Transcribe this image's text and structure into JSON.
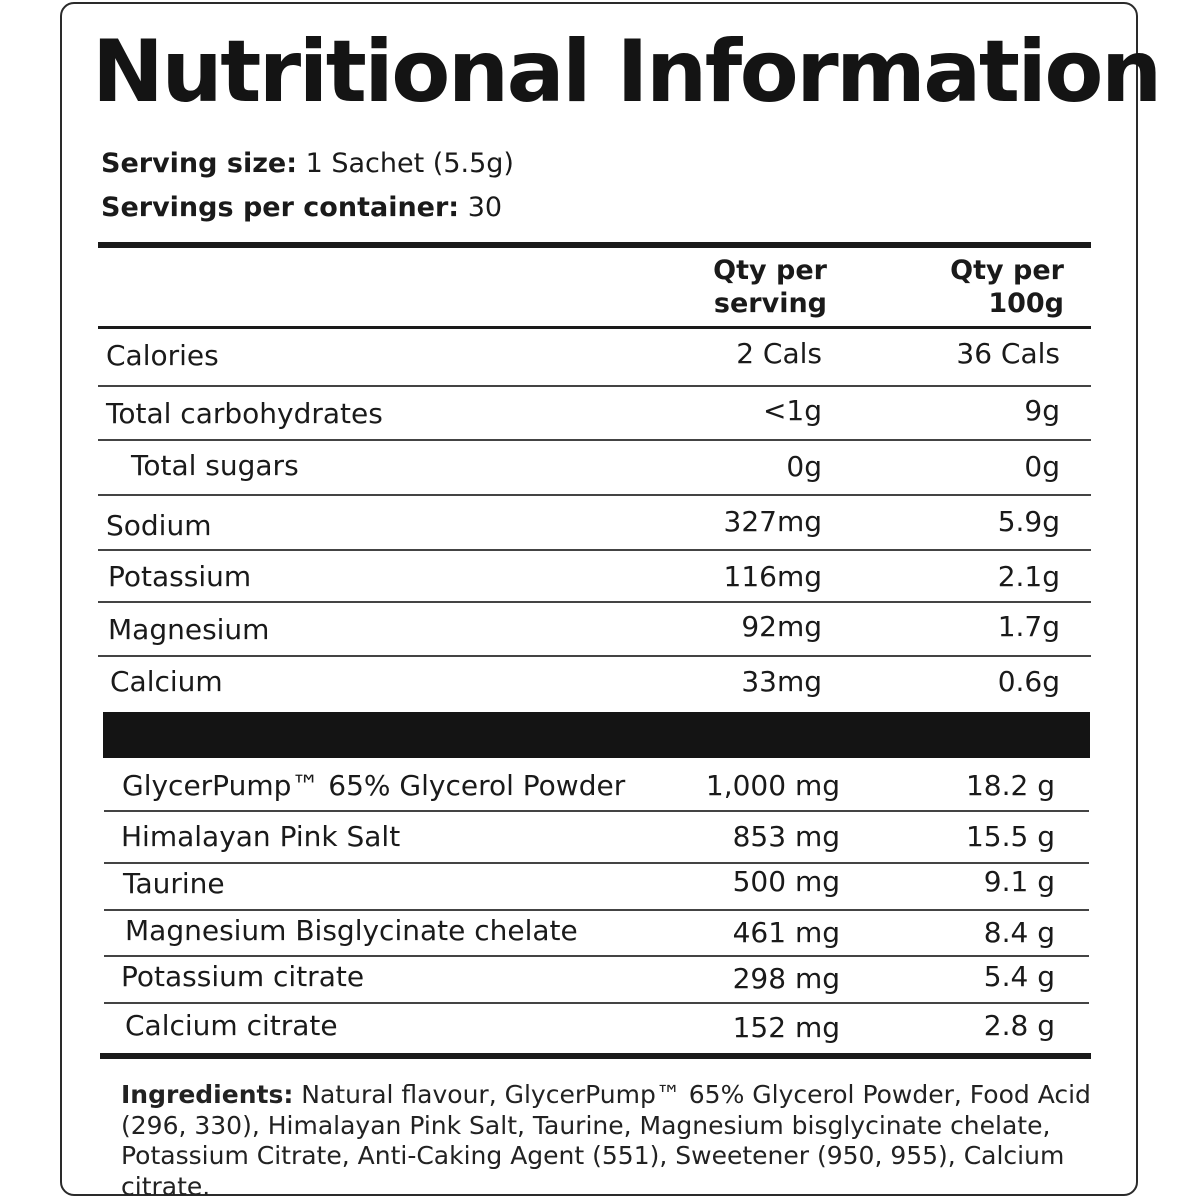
{
  "title": "Nutritional Information",
  "serving": {
    "size_label": "Serving size:",
    "size_value": " 1 Sachet (5.5g)",
    "per_container_label": "Servings per container:",
    "per_container_value": " 30"
  },
  "columns": {
    "per_serving_line1": "Qty per",
    "per_serving_line2": "serving",
    "per_100g_line1": "Qty per",
    "per_100g_line2": "100g"
  },
  "nutrients": [
    {
      "name": "Calories",
      "serving": "2 Cals",
      "per100": "36 Cals"
    },
    {
      "name": "Total carbohydrates",
      "serving": "<1g",
      "per100": "9g"
    },
    {
      "name": "Total sugars",
      "serving": "0g",
      "per100": "0g"
    },
    {
      "name": "Sodium",
      "serving": "327mg",
      "per100": "5.9g"
    },
    {
      "name": "Potassium",
      "serving": "116mg",
      "per100": "2.1g"
    },
    {
      "name": "Magnesium",
      "serving": "92mg",
      "per100": "1.7g"
    },
    {
      "name": "Calcium",
      "serving": "33mg",
      "per100": "0.6g"
    }
  ],
  "actives": [
    {
      "name": "GlycerPump™ 65% Glycerol Powder",
      "serving": "1,000 mg",
      "per100": "18.2 g"
    },
    {
      "name": "Himalayan Pink Salt",
      "serving": "853 mg",
      "per100": "15.5 g"
    },
    {
      "name": "Taurine",
      "serving": "500 mg",
      "per100": "9.1 g"
    },
    {
      "name": "Magnesium Bisglycinate chelate",
      "serving": "461 mg",
      "per100": "8.4 g"
    },
    {
      "name": "Potassium citrate",
      "serving": "298 mg",
      "per100": "5.4 g"
    },
    {
      "name": "Calcium citrate",
      "serving": "152 mg",
      "per100": "2.8 g"
    }
  ],
  "ingredients": {
    "label": "Ingredients:",
    "text": " Natural flavour, GlycerPump™ 65% Glycerol Powder, Food Acid (296, 330), Himalayan Pink Salt, Taurine, Magnesium bisglycinate chelate, Potassium Citrate, Anti-Caking Agent (551), Sweetener (950, 955), Calcium citrate."
  }
}
